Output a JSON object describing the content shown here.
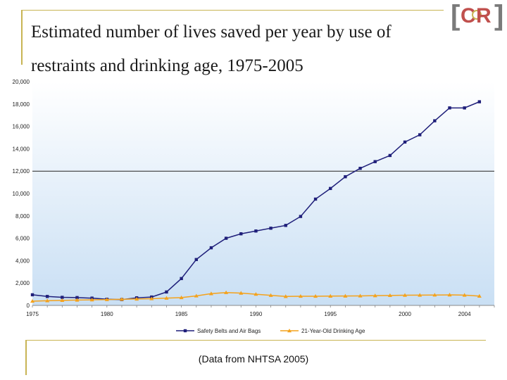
{
  "title": "Estimated number of lives saved per year by use of restraints and drinking age, 1975-2005",
  "source_note": "(Data from NHTSA 2005)",
  "logo": {
    "text": "CR"
  },
  "colors": {
    "accent": "#c8b454",
    "plot_bg_top": "#ffffff",
    "plot_bg_bottom": "#c9dff4",
    "series1": "#1f1f7a",
    "series2": "#f4a21c",
    "refline": "#222222"
  },
  "chart_data": {
    "type": "line",
    "title": "Estimated number of lives saved per year by use of restraints and drinking age, 1975-2005",
    "xlabel": "",
    "ylabel": "",
    "xlim": [
      1975,
      2006
    ],
    "ylim": [
      0,
      20000
    ],
    "x_ticks": [
      1975,
      1980,
      1985,
      1990,
      1995,
      2000,
      2004
    ],
    "x_tick_labels": [
      "1975",
      "1980",
      "1985",
      "1990",
      "1995",
      "2000",
      "2004"
    ],
    "y_ticks": [
      0,
      2000,
      4000,
      6000,
      8000,
      10000,
      12000,
      14000,
      16000,
      18000,
      20000
    ],
    "y_tick_labels": [
      "0",
      "2,000",
      "4,000",
      "6,000",
      "8,000",
      "10,000",
      "12,000",
      "14,000",
      "16,000",
      "18,000",
      "20,000"
    ],
    "reference_line_y": 12000,
    "grid": false,
    "legend_position": "bottom",
    "x": [
      1975,
      1976,
      1977,
      1978,
      1979,
      1980,
      1981,
      1982,
      1983,
      1984,
      1985,
      1986,
      1987,
      1988,
      1989,
      1990,
      1991,
      1992,
      1993,
      1994,
      1995,
      1996,
      1997,
      1998,
      1999,
      2000,
      2001,
      2002,
      2003,
      2004,
      2005
    ],
    "series": [
      {
        "name": "Safety Belts and Air Bags",
        "marker": "square",
        "values": [
          950,
          800,
          720,
          700,
          650,
          550,
          520,
          680,
          750,
          1200,
          2400,
          4100,
          5150,
          6000,
          6400,
          6650,
          6900,
          7150,
          7950,
          9500,
          10450,
          11500,
          12250,
          12850,
          13400,
          14600,
          15250,
          16500,
          17650,
          17650,
          18200
        ]
      },
      {
        "name": "21-Year-Old Drinking Age",
        "marker": "triangle",
        "values": [
          380,
          420,
          450,
          480,
          500,
          520,
          550,
          570,
          600,
          650,
          700,
          850,
          1050,
          1150,
          1100,
          1000,
          900,
          800,
          820,
          820,
          830,
          840,
          850,
          870,
          890,
          910,
          920,
          930,
          940,
          920,
          830
        ]
      }
    ]
  }
}
